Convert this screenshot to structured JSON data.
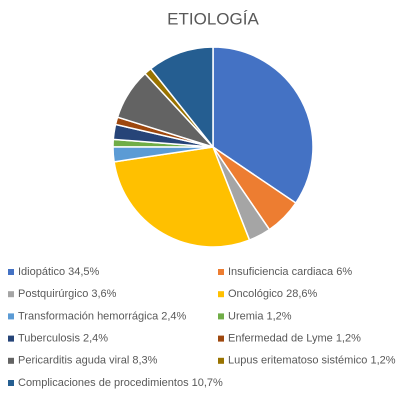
{
  "chart_data": {
    "type": "pie",
    "title": "ETIOLOGÍA",
    "categories": [
      "Idiopático 34,5%",
      "Insuficiencia cardiaca 6%",
      "Postquirúrgico 3,6%",
      "Oncológico 28,6%",
      "Transformación hemorrágica 2,4%",
      "Uremia 1,2%",
      "Tuberculosis 2,4%",
      "Enfermedad de Lyme 1,2%",
      "Pericarditis aguda viral 8,3%",
      "Lupus eritematoso sistémico 1,2%",
      "Complicaciones de procedimientos 10,7%"
    ],
    "values": [
      34.5,
      6,
      3.6,
      28.6,
      2.4,
      1.2,
      2.4,
      1.2,
      8.3,
      1.2,
      10.7
    ],
    "colors": [
      "#4472c4",
      "#ed7d31",
      "#a5a5a5",
      "#ffc000",
      "#5b9bd5",
      "#70ad47",
      "#264478",
      "#9e480e",
      "#636363",
      "#997300",
      "#255e91"
    ]
  }
}
